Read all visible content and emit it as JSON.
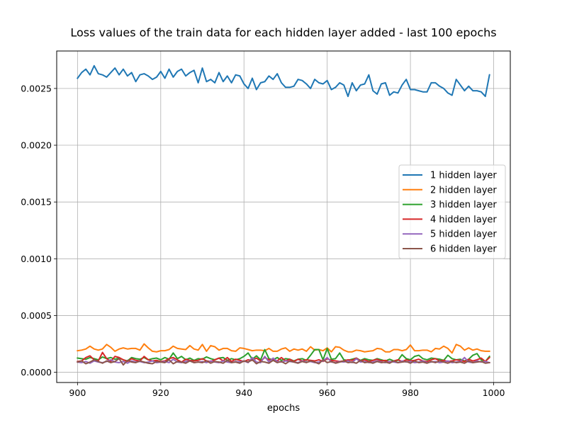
{
  "chart_data": {
    "type": "line",
    "title": "Loss values of the train data for each hidden layer added - last 100 epochs",
    "xlabel": "epochs",
    "ylabel": "",
    "xlim": [
      895,
      1004
    ],
    "ylim": [
      -9e-05,
      0.00283
    ],
    "xticks": [
      900,
      920,
      940,
      960,
      980,
      1000
    ],
    "yticks": [
      0.0,
      0.0005,
      0.001,
      0.0015,
      0.002,
      0.0025
    ],
    "ytick_labels": [
      "0.0000",
      "0.0005",
      "0.0010",
      "0.0015",
      "0.0020",
      "0.0025"
    ],
    "grid": true,
    "legend_position": "center-right",
    "x_start": 900,
    "x_end": 999,
    "series": [
      {
        "name": "1 hidden layer",
        "color": "#1f77b4",
        "values": [
          0.00259,
          0.00264,
          0.00267,
          0.00262,
          0.0027,
          0.00263,
          0.00262,
          0.0026,
          0.00264,
          0.00268,
          0.00262,
          0.00267,
          0.00261,
          0.00264,
          0.00256,
          0.00262,
          0.00263,
          0.00261,
          0.00258,
          0.0026,
          0.00265,
          0.00259,
          0.00267,
          0.0026,
          0.00265,
          0.00267,
          0.00261,
          0.00264,
          0.00266,
          0.00255,
          0.00268,
          0.00256,
          0.00258,
          0.00255,
          0.00264,
          0.00256,
          0.00261,
          0.00255,
          0.00262,
          0.00261,
          0.00254,
          0.0025,
          0.00259,
          0.00249,
          0.00255,
          0.00256,
          0.00261,
          0.00258,
          0.00263,
          0.00255,
          0.00251,
          0.00251,
          0.00252,
          0.00258,
          0.00257,
          0.00254,
          0.0025,
          0.00258,
          0.00255,
          0.00254,
          0.00257,
          0.00249,
          0.00251,
          0.00255,
          0.00253,
          0.00243,
          0.00255,
          0.00248,
          0.00253,
          0.00254,
          0.00262,
          0.00248,
          0.00245,
          0.00254,
          0.00255,
          0.00244,
          0.00247,
          0.00246,
          0.00253,
          0.00258,
          0.00249,
          0.00249,
          0.00248,
          0.00247,
          0.00247,
          0.00255,
          0.00255,
          0.00252,
          0.0025,
          0.00246,
          0.00244,
          0.00258,
          0.00253,
          0.00248,
          0.00252,
          0.00248,
          0.00248,
          0.00247,
          0.00243,
          0.00262
        ]
      },
      {
        "name": "2 hidden layer",
        "color": "#ff7f0e",
        "values": [
          0.00019,
          0.000195,
          0.000205,
          0.00023,
          0.000205,
          0.000195,
          0.000205,
          0.000245,
          0.00022,
          0.000185,
          0.000205,
          0.000215,
          0.000205,
          0.00021,
          0.00021,
          0.000195,
          0.00025,
          0.000215,
          0.000185,
          0.00018,
          0.00019,
          0.00019,
          0.0002,
          0.00023,
          0.00021,
          0.000205,
          0.0002,
          0.000235,
          0.000205,
          0.000195,
          0.000245,
          0.000185,
          0.000235,
          0.000225,
          0.000195,
          0.00021,
          0.00021,
          0.00019,
          0.000185,
          0.000215,
          0.00021,
          0.0002,
          0.00019,
          0.000195,
          0.000195,
          0.00019,
          0.00021,
          0.000185,
          0.000185,
          0.000205,
          0.000215,
          0.000185,
          0.000205,
          0.000195,
          0.000205,
          0.000185,
          0.000225,
          0.000195,
          0.0002,
          0.00019,
          0.000215,
          0.00018,
          0.000225,
          0.00022,
          0.000195,
          0.00018,
          0.00018,
          0.000195,
          0.00019,
          0.00018,
          0.000185,
          0.00019,
          0.00021,
          0.000205,
          0.00018,
          0.00018,
          0.0002,
          0.0002,
          0.00019,
          0.0002,
          0.00024,
          0.00019,
          0.00019,
          0.000195,
          0.000195,
          0.00018,
          0.00021,
          0.000205,
          0.00023,
          0.00021,
          0.00017,
          0.000245,
          0.00023,
          0.000195,
          0.000215,
          0.000195,
          0.000205,
          0.00019,
          0.000185,
          0.000185
        ]
      },
      {
        "name": "3 hidden layer",
        "color": "#2ca02c",
        "values": [
          0.000125,
          0.00012,
          0.000115,
          0.00013,
          0.00012,
          0.00011,
          0.000135,
          0.00012,
          0.00013,
          0.000115,
          0.000125,
          0.00011,
          0.0001,
          0.00013,
          0.00012,
          0.000115,
          0.00013,
          0.00011,
          0.00012,
          0.000125,
          0.00011,
          0.00013,
          0.000115,
          0.00017,
          0.00012,
          0.00014,
          0.00011,
          0.000125,
          0.000105,
          0.00012,
          0.000115,
          0.000135,
          0.00012,
          0.00011,
          0.000125,
          0.00013,
          0.000105,
          0.00012,
          0.00011,
          0.00012,
          0.00014,
          0.00017,
          0.000115,
          0.000145,
          0.00011,
          0.0002,
          0.00012,
          0.00011,
          0.00013,
          0.000105,
          0.00012,
          0.000115,
          0.0001,
          0.000115,
          0.00012,
          0.000105,
          0.00015,
          0.0002,
          0.0002,
          0.00011,
          0.00021,
          0.000115,
          0.00012,
          0.00017,
          0.00011,
          0.000105,
          0.000115,
          0.000125,
          0.000105,
          0.00012,
          0.00011,
          0.000105,
          0.00012,
          0.00011,
          0.0001,
          0.000115,
          0.0001,
          0.000105,
          0.000155,
          0.00012,
          0.00011,
          0.00014,
          0.00015,
          0.00012,
          0.00011,
          0.000125,
          0.00012,
          0.000115,
          0.000105,
          0.00015,
          0.00012,
          0.00011,
          0.000115,
          0.0001,
          0.000115,
          0.00015,
          0.000165,
          0.00011,
          9.5e-05,
          0.00014
        ]
      },
      {
        "name": "4 hidden layer",
        "color": "#d62728",
        "values": [
          9.5e-05,
          0.0001,
          0.00013,
          0.000145,
          0.00011,
          0.0001,
          0.000175,
          0.00012,
          9.5e-05,
          0.00014,
          0.00013,
          0.00011,
          9.5e-05,
          0.00012,
          0.000105,
          0.0001,
          0.00014,
          0.00011,
          0.0001,
          0.000105,
          9.5e-05,
          0.0001,
          0.00012,
          0.00013,
          0.00011,
          9e-05,
          0.000115,
          0.000105,
          0.0001,
          0.000105,
          0.00012,
          0.0001,
          9.5e-05,
          0.00011,
          0.000125,
          0.0001,
          0.00013,
          9.5e-05,
          0.000115,
          0.000105,
          9.5e-05,
          0.00011,
          0.000105,
          0.000125,
          0.0001,
          0.00013,
          0.00011,
          0.000115,
          0.0001,
          0.00013,
          0.0001,
          0.000115,
          9.5e-05,
          0.000115,
          0.0001,
          0.00011,
          0.000105,
          0.0001,
          0.00011,
          9.5e-05,
          0.00012,
          0.000105,
          0.0001,
          9.5e-05,
          0.0001,
          0.00011,
          0.000105,
          0.000125,
          0.0001,
          0.00011,
          9.5e-05,
          0.000105,
          0.000115,
          0.0001,
          0.000105,
          9e-05,
          0.0001,
          0.00011,
          9.5e-05,
          0.00011,
          0.0001,
          0.000105,
          0.000115,
          0.0001,
          9.5e-05,
          0.00011,
          0.00012,
          0.0001,
          0.000105,
          9.5e-05,
          0.0001,
          0.00011,
          0.000105,
          9.5e-05,
          0.000115,
          0.0001,
          0.00011,
          0.000125,
          9.5e-05,
          0.00013
        ]
      },
      {
        "name": "5 hidden layer",
        "color": "#9467bd",
        "values": [
          9e-05,
          8.5e-05,
          9.5e-05,
          8e-05,
          0.0001,
          9e-05,
          8.5e-05,
          9.5e-05,
          0.00011,
          9e-05,
          8.5e-05,
          9.5e-05,
          8e-05,
          0.0001,
          9e-05,
          9.5e-05,
          8.5e-05,
          9e-05,
          0.0001,
          8.5e-05,
          9e-05,
          9.5e-05,
          8.5e-05,
          0.000115,
          9e-05,
          8.5e-05,
          9.5e-05,
          0.0001,
          8.5e-05,
          9e-05,
          9.5e-05,
          8.5e-05,
          0.0001,
          9e-05,
          8.5e-05,
          0.0001,
          9e-05,
          8.5e-05,
          9.5e-05,
          9e-05,
          0.0001,
          8.5e-05,
          0.00013,
          9e-05,
          8.5e-05,
          0.00014,
          9e-05,
          0.000125,
          9.5e-05,
          9e-05,
          0.0001,
          9.5e-05,
          9e-05,
          8.5e-05,
          0.0001,
          9e-05,
          9.5e-05,
          8.5e-05,
          9e-05,
          0.0001,
          0.00013,
          9e-05,
          8.5e-05,
          9.5e-05,
          9e-05,
          0.0001,
          8.5e-05,
          0.00012,
          9e-05,
          9.5e-05,
          8.5e-05,
          9e-05,
          0.0001,
          9e-05,
          8.5e-05,
          9.5e-05,
          9e-05,
          8.5e-05,
          0.0001,
          9e-05,
          9.5e-05,
          8.5e-05,
          9e-05,
          0.0001,
          8.5e-05,
          9e-05,
          9.5e-05,
          8.5e-05,
          9e-05,
          0.0001,
          8.5e-05,
          9e-05,
          9.5e-05,
          0.00013,
          9e-05,
          8.5e-05,
          0.0001,
          9e-05,
          9.5e-05,
          8.5e-05
        ]
      },
      {
        "name": "6 hidden layer",
        "color": "#8c564b",
        "values": [
          9e-05,
          0.0001,
          7.5e-05,
          9e-05,
          0.00011,
          9.5e-05,
          8e-05,
          0.0001,
          8.5e-05,
          9.5e-05,
          0.00012,
          6.5e-05,
          0.000105,
          9e-05,
          8.5e-05,
          0.0001,
          9e-05,
          8e-05,
          7.5e-05,
          9.5e-05,
          9e-05,
          8.5e-05,
          0.00011,
          7.5e-05,
          9.5e-05,
          9e-05,
          8e-05,
          0.0001,
          8.5e-05,
          9e-05,
          8.5e-05,
          0.0001,
          8e-05,
          9.5e-05,
          9e-05,
          8e-05,
          0.000105,
          8.5e-05,
          9e-05,
          8e-05,
          0.0001,
          9e-05,
          0.00011,
          7.5e-05,
          9.5e-05,
          9e-05,
          8e-05,
          0.000105,
          8.5e-05,
          9.5e-05,
          7.5e-05,
          0.0001,
          9e-05,
          8e-05,
          9.5e-05,
          8.5e-05,
          0.0001,
          9e-05,
          7.5e-05,
          0.00011,
          8.5e-05,
          9.5e-05,
          8e-05,
          9e-05,
          0.0001,
          8.5e-05,
          9e-05,
          8e-05,
          0.000105,
          8.5e-05,
          9e-05,
          8e-05,
          9.5e-05,
          8.5e-05,
          9e-05,
          8e-05,
          0.0001,
          8.5e-05,
          9e-05,
          9.5e-05,
          8e-05,
          0.0001,
          8.5e-05,
          9e-05,
          8e-05,
          9.5e-05,
          8.5e-05,
          0.0001,
          9e-05,
          8e-05,
          9.5e-05,
          8.5e-05,
          9e-05,
          8e-05,
          0.0001,
          8.5e-05,
          9e-05,
          9.5e-05,
          8e-05,
          8.5e-05
        ]
      }
    ]
  }
}
